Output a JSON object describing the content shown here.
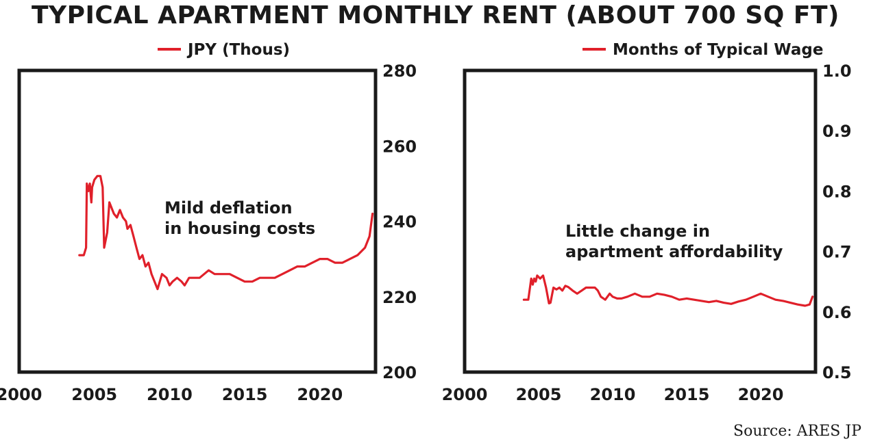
{
  "title": "TYPICAL APARTMENT MONTHLY RENT (ABOUT 700 SQ FT)",
  "source": "Source: ARES JP",
  "colors": {
    "series": "#e0202a",
    "axis": "#1a1a1a"
  },
  "chart_data": [
    {
      "type": "line",
      "legend": "JPY (Thous)",
      "legend_position": "top",
      "annotation": [
        "Mild deflation",
        "in housing costs"
      ],
      "xlim": [
        2000,
        2023.7
      ],
      "xticks": [
        2000,
        2005,
        2010,
        2015,
        2020
      ],
      "ylim": [
        200,
        280
      ],
      "yticks": [
        200,
        220,
        240,
        260,
        280
      ],
      "y_axis_side": "right",
      "grid": false,
      "series": [
        {
          "name": "JPY (Thous)",
          "x": [
            2004.0,
            2004.3,
            2004.45,
            2004.5,
            2004.6,
            2004.7,
            2004.8,
            2004.85,
            2005.0,
            2005.2,
            2005.4,
            2005.55,
            2005.65,
            2005.75,
            2005.85,
            2006.0,
            2006.1,
            2006.2,
            2006.3,
            2006.5,
            2006.7,
            2006.9,
            2007.1,
            2007.2,
            2007.4,
            2007.6,
            2007.8,
            2008.0,
            2008.2,
            2008.4,
            2008.6,
            2008.8,
            2009.0,
            2009.2,
            2009.5,
            2009.8,
            2010.0,
            2010.2,
            2010.5,
            2010.8,
            2011.0,
            2011.3,
            2011.6,
            2012.0,
            2012.3,
            2012.6,
            2013.0,
            2013.5,
            2014.0,
            2014.5,
            2015.0,
            2015.5,
            2016.0,
            2016.5,
            2017.0,
            2017.5,
            2018.0,
            2018.5,
            2019.0,
            2019.5,
            2020.0,
            2020.5,
            2021.0,
            2021.5,
            2022.0,
            2022.5,
            2023.0,
            2023.3,
            2023.5
          ],
          "values": [
            231,
            231,
            233,
            250,
            248,
            250,
            245,
            249,
            251,
            252,
            252,
            249,
            233,
            235,
            237,
            245,
            244,
            243,
            242,
            241,
            243,
            241,
            240,
            238,
            239,
            236,
            233,
            230,
            231,
            228,
            229,
            226,
            224,
            222,
            226,
            225,
            223,
            224,
            225,
            224,
            223,
            225,
            225,
            225,
            226,
            227,
            226,
            226,
            226,
            225,
            224,
            224,
            225,
            225,
            225,
            226,
            227,
            228,
            228,
            229,
            230,
            230,
            229,
            229,
            230,
            231,
            233,
            236,
            242
          ]
        }
      ]
    },
    {
      "type": "line",
      "legend": "Months of Typical Wage",
      "legend_position": "top",
      "annotation": [
        "Little change in",
        "apartment affordability"
      ],
      "xlim": [
        2000,
        2023.7
      ],
      "xticks": [
        2000,
        2005,
        2010,
        2015,
        2020
      ],
      "ylim": [
        0.5,
        1.0
      ],
      "yticks": [
        0.5,
        0.6,
        0.7,
        0.8,
        0.9,
        1.0
      ],
      "y_axis_side": "right",
      "grid": false,
      "series": [
        {
          "name": "Months of Typical Wage",
          "x": [
            2004.0,
            2004.3,
            2004.5,
            2004.6,
            2004.7,
            2004.8,
            2004.9,
            2005.1,
            2005.3,
            2005.5,
            2005.7,
            2005.8,
            2006.0,
            2006.2,
            2006.4,
            2006.6,
            2006.8,
            2007.0,
            2007.3,
            2007.6,
            2007.9,
            2008.2,
            2008.5,
            2008.8,
            2009.0,
            2009.2,
            2009.5,
            2009.8,
            2010.0,
            2010.3,
            2010.6,
            2011.0,
            2011.5,
            2012.0,
            2012.5,
            2013.0,
            2013.5,
            2014.0,
            2014.5,
            2015.0,
            2015.5,
            2016.0,
            2016.5,
            2017.0,
            2017.5,
            2018.0,
            2018.5,
            2019.0,
            2019.5,
            2020.0,
            2020.5,
            2021.0,
            2021.5,
            2022.0,
            2022.5,
            2023.0,
            2023.3,
            2023.5
          ],
          "values": [
            0.62,
            0.62,
            0.655,
            0.645,
            0.655,
            0.65,
            0.66,
            0.655,
            0.66,
            0.64,
            0.614,
            0.615,
            0.64,
            0.637,
            0.64,
            0.635,
            0.643,
            0.641,
            0.635,
            0.63,
            0.635,
            0.64,
            0.64,
            0.64,
            0.635,
            0.625,
            0.62,
            0.63,
            0.625,
            0.622,
            0.622,
            0.625,
            0.63,
            0.625,
            0.625,
            0.63,
            0.628,
            0.625,
            0.62,
            0.622,
            0.62,
            0.618,
            0.616,
            0.618,
            0.615,
            0.613,
            0.617,
            0.62,
            0.625,
            0.63,
            0.625,
            0.62,
            0.618,
            0.615,
            0.612,
            0.61,
            0.612,
            0.625
          ]
        }
      ]
    }
  ]
}
